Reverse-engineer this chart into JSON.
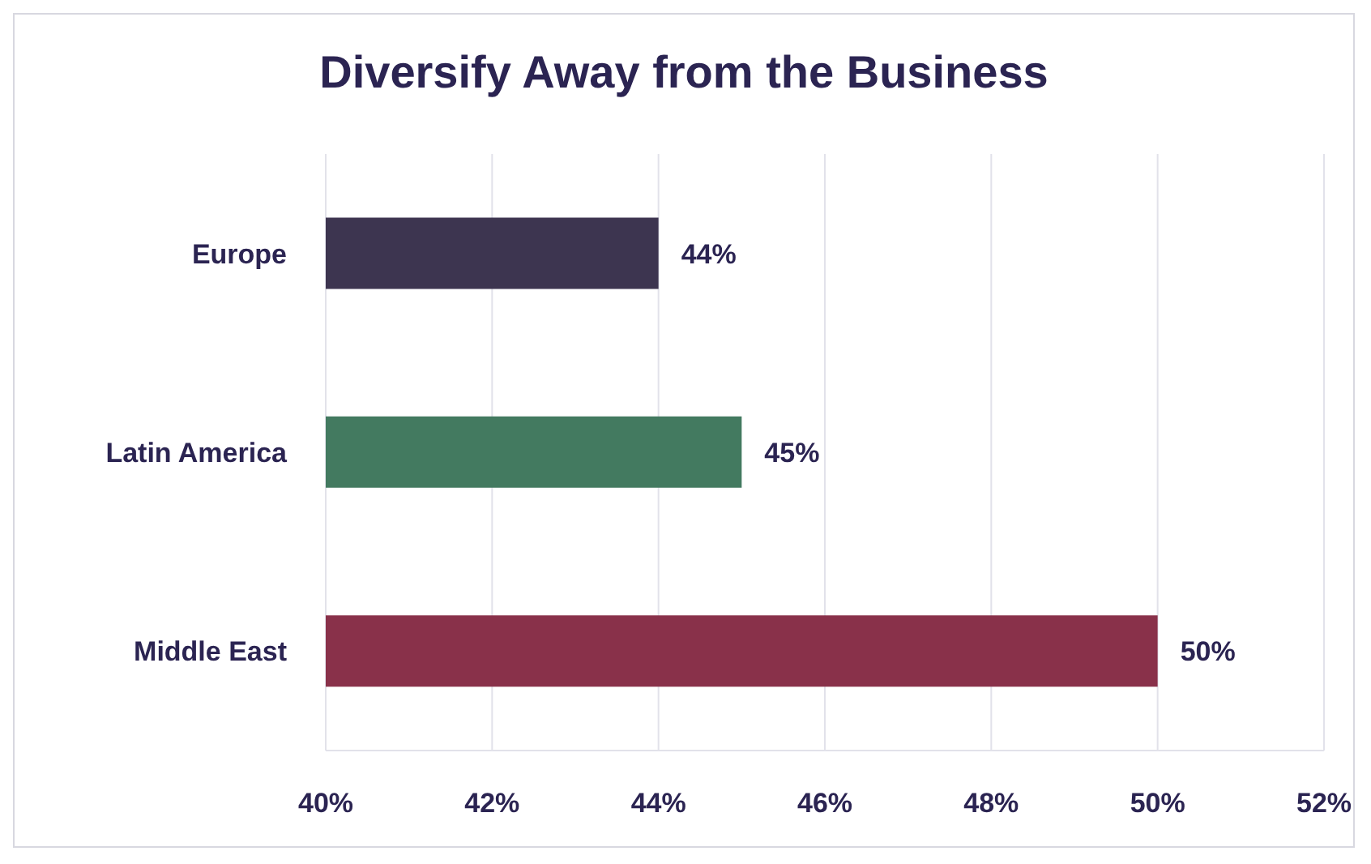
{
  "chart_data": {
    "type": "bar",
    "orientation": "horizontal",
    "title": "Diversify Away from the Business",
    "categories": [
      "Europe",
      "Latin America",
      "Middle East"
    ],
    "values": [
      44,
      45,
      50
    ],
    "colors": [
      "#3d3550",
      "#437a60",
      "#89314a"
    ],
    "value_labels": [
      "44%",
      "45%",
      "50%"
    ],
    "xlim": [
      40,
      52
    ],
    "xticks": [
      {
        "value": 40,
        "label": "40%"
      },
      {
        "value": 42,
        "label": "42%"
      },
      {
        "value": 44,
        "label": "44%"
      },
      {
        "value": 46,
        "label": "46%"
      },
      {
        "value": 48,
        "label": "48%"
      },
      {
        "value": 50,
        "label": "50%"
      },
      {
        "value": 52,
        "label": "52%"
      }
    ],
    "grid": "x"
  }
}
